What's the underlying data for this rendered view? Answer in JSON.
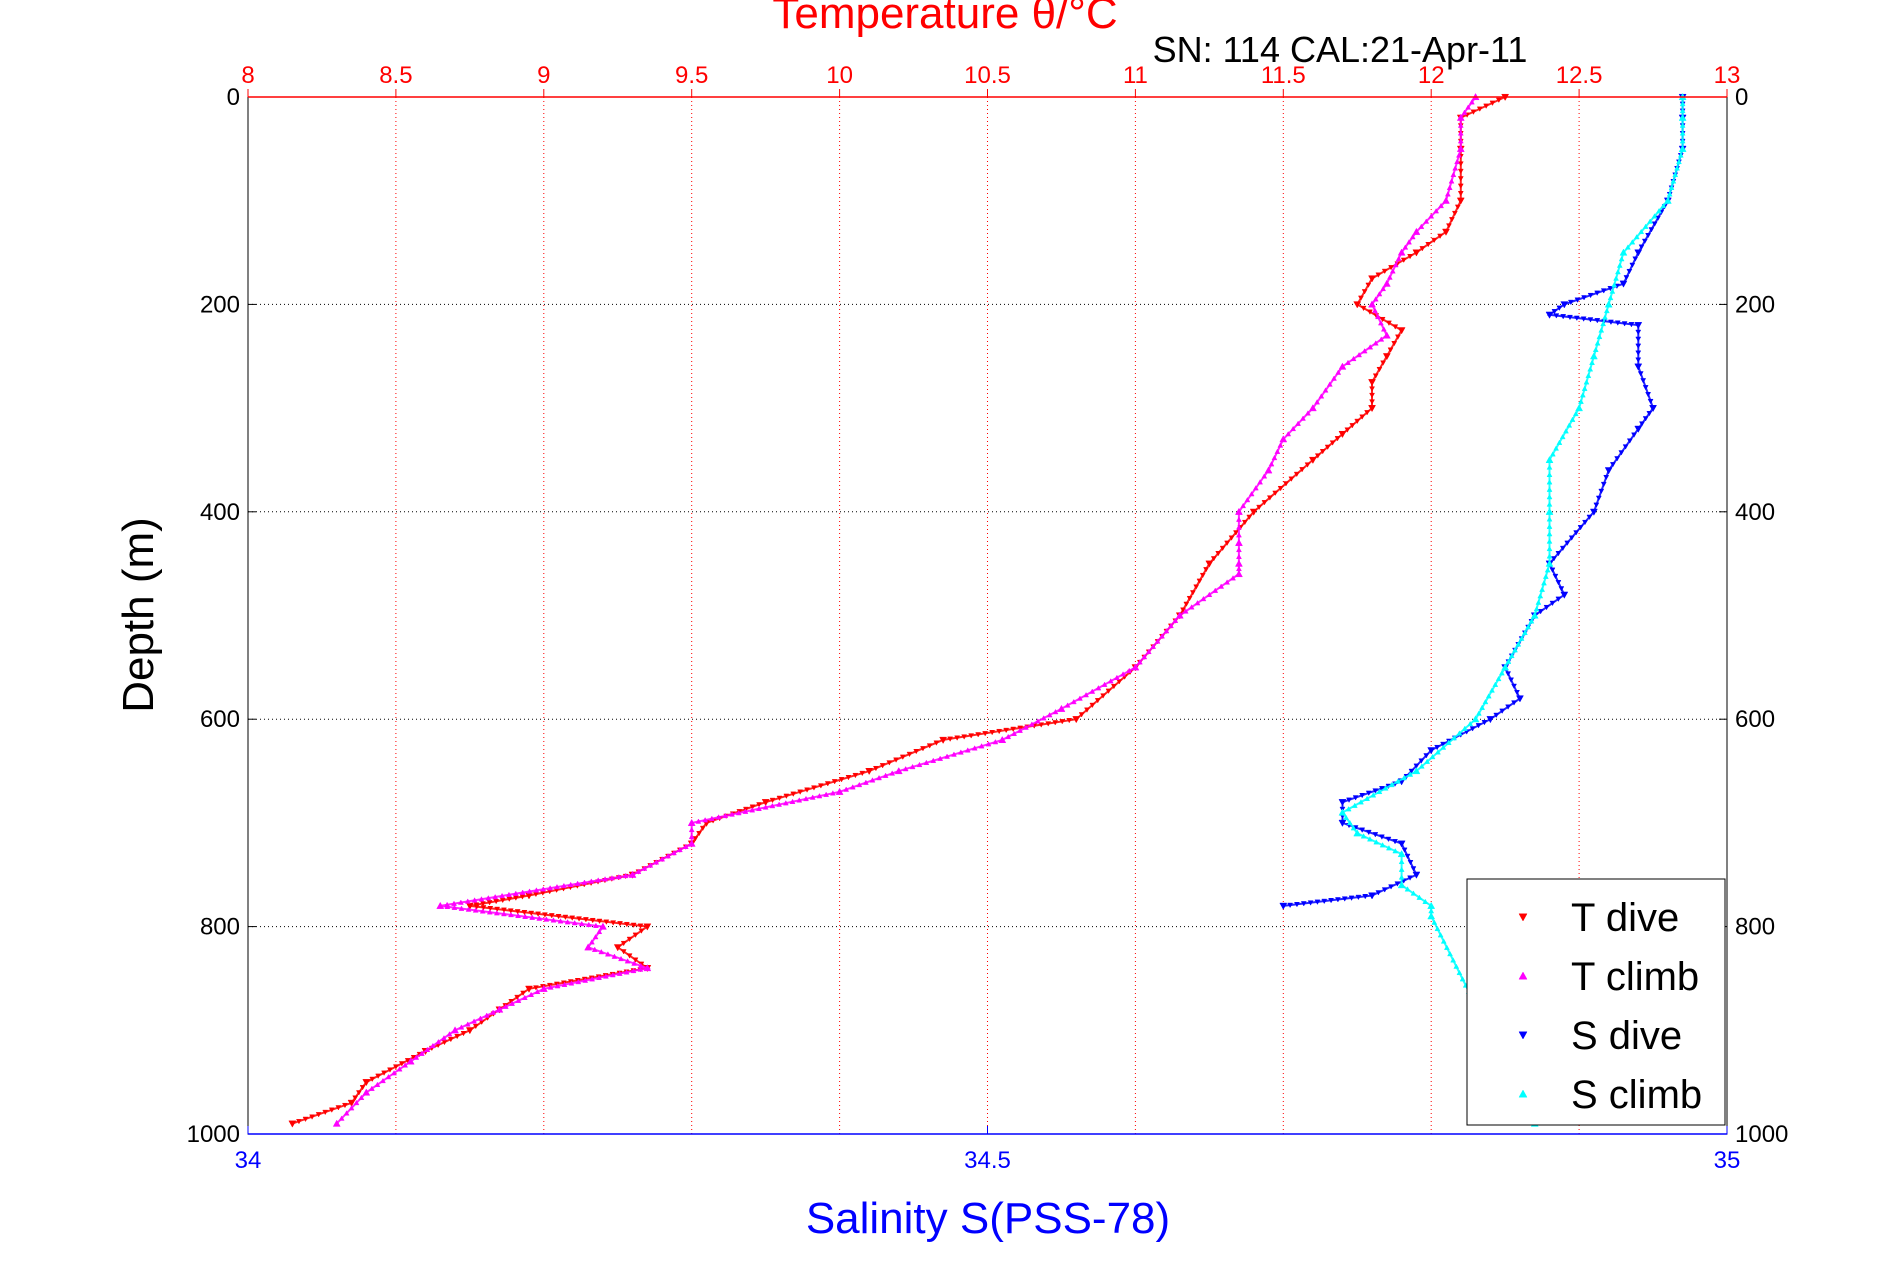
{
  "chart_data": {
    "type": "scatter",
    "title": "Temperature θ/°C",
    "subtitle": "SN: 114  CAL:21-Apr-11",
    "ylabel": "Depth (m)",
    "xlabel": "Salinity S(PSS-78)",
    "top_axis": {
      "label": "Temperature θ/°C",
      "range": [
        8,
        13
      ],
      "ticks": [
        "8",
        "8.5",
        "9",
        "9.5",
        "10",
        "10.5",
        "11",
        "11.5",
        "12",
        "12.5",
        "13"
      ],
      "color": "#ff0000"
    },
    "bottom_axis": {
      "label": "Salinity S(PSS-78)",
      "range": [
        34,
        35
      ],
      "ticks": [
        "34",
        "34.5",
        "35"
      ],
      "color": "#0000ff"
    },
    "y_axis": {
      "range": [
        0,
        1000
      ],
      "reversed": true,
      "ticks": [
        "0",
        "200",
        "400",
        "600",
        "800",
        "1000"
      ]
    },
    "grid": true,
    "legend_position": "bottom-right",
    "series": [
      {
        "name": "T dive",
        "axis": "temperature",
        "color": "#ff0000",
        "marker": "triangle-down",
        "depth": [
          0,
          20,
          50,
          100,
          130,
          150,
          175,
          200,
          225,
          250,
          275,
          300,
          325,
          350,
          400,
          450,
          500,
          550,
          600,
          620,
          650,
          680,
          700,
          720,
          750,
          770,
          780,
          800,
          820,
          840,
          860,
          880,
          900,
          920,
          950,
          970,
          990
        ],
        "values": [
          12.25,
          12.1,
          12.1,
          12.1,
          12.05,
          11.95,
          11.8,
          11.75,
          11.9,
          11.85,
          11.8,
          11.8,
          11.7,
          11.6,
          11.4,
          11.25,
          11.15,
          11.0,
          10.8,
          10.35,
          10.1,
          9.75,
          9.55,
          9.5,
          9.3,
          8.95,
          8.75,
          9.35,
          9.25,
          9.35,
          8.95,
          8.85,
          8.75,
          8.6,
          8.4,
          8.35,
          8.15
        ]
      },
      {
        "name": "T climb",
        "axis": "temperature",
        "color": "#ff00ff",
        "marker": "triangle-up",
        "depth": [
          0,
          20,
          50,
          100,
          130,
          150,
          180,
          200,
          230,
          260,
          300,
          330,
          360,
          400,
          430,
          450,
          460,
          500,
          550,
          590,
          620,
          650,
          670,
          700,
          720,
          750,
          780,
          800,
          820,
          840,
          860,
          880,
          900,
          930,
          960,
          990
        ],
        "values": [
          12.15,
          12.1,
          12.1,
          12.05,
          11.95,
          11.9,
          11.85,
          11.8,
          11.85,
          11.7,
          11.6,
          11.5,
          11.45,
          11.35,
          11.35,
          11.35,
          11.35,
          11.15,
          11.0,
          10.75,
          10.55,
          10.2,
          10.0,
          9.5,
          9.5,
          9.3,
          8.65,
          9.2,
          9.15,
          9.35,
          9.0,
          8.85,
          8.7,
          8.55,
          8.4,
          8.3
        ]
      },
      {
        "name": "S dive",
        "axis": "salinity",
        "color": "#0000ff",
        "marker": "triangle-down",
        "depth": [
          0,
          20,
          50,
          100,
          150,
          180,
          200,
          210,
          220,
          260,
          300,
          320,
          360,
          400,
          450,
          480,
          500,
          550,
          580,
          600,
          630,
          660,
          680,
          700,
          720,
          750,
          770,
          780
        ],
        "values": [
          34.97,
          34.97,
          34.97,
          34.96,
          34.94,
          34.93,
          34.89,
          34.88,
          34.94,
          34.94,
          34.95,
          34.94,
          34.92,
          34.91,
          34.88,
          34.89,
          34.87,
          34.85,
          34.86,
          34.84,
          34.8,
          34.78,
          34.74,
          34.74,
          34.78,
          34.79,
          34.76,
          34.7
        ]
      },
      {
        "name": "S climb",
        "axis": "salinity",
        "color": "#00ffff",
        "marker": "triangle-up",
        "depth": [
          0,
          20,
          50,
          100,
          150,
          200,
          250,
          300,
          350,
          400,
          450,
          500,
          550,
          600,
          650,
          690,
          710,
          730,
          760,
          780,
          790,
          990
        ],
        "values": [
          34.97,
          34.97,
          34.97,
          34.96,
          34.93,
          34.92,
          34.91,
          34.9,
          34.88,
          34.88,
          34.88,
          34.87,
          34.85,
          34.83,
          34.79,
          34.74,
          34.75,
          34.78,
          34.78,
          34.8,
          34.8,
          34.87
        ]
      }
    ]
  }
}
